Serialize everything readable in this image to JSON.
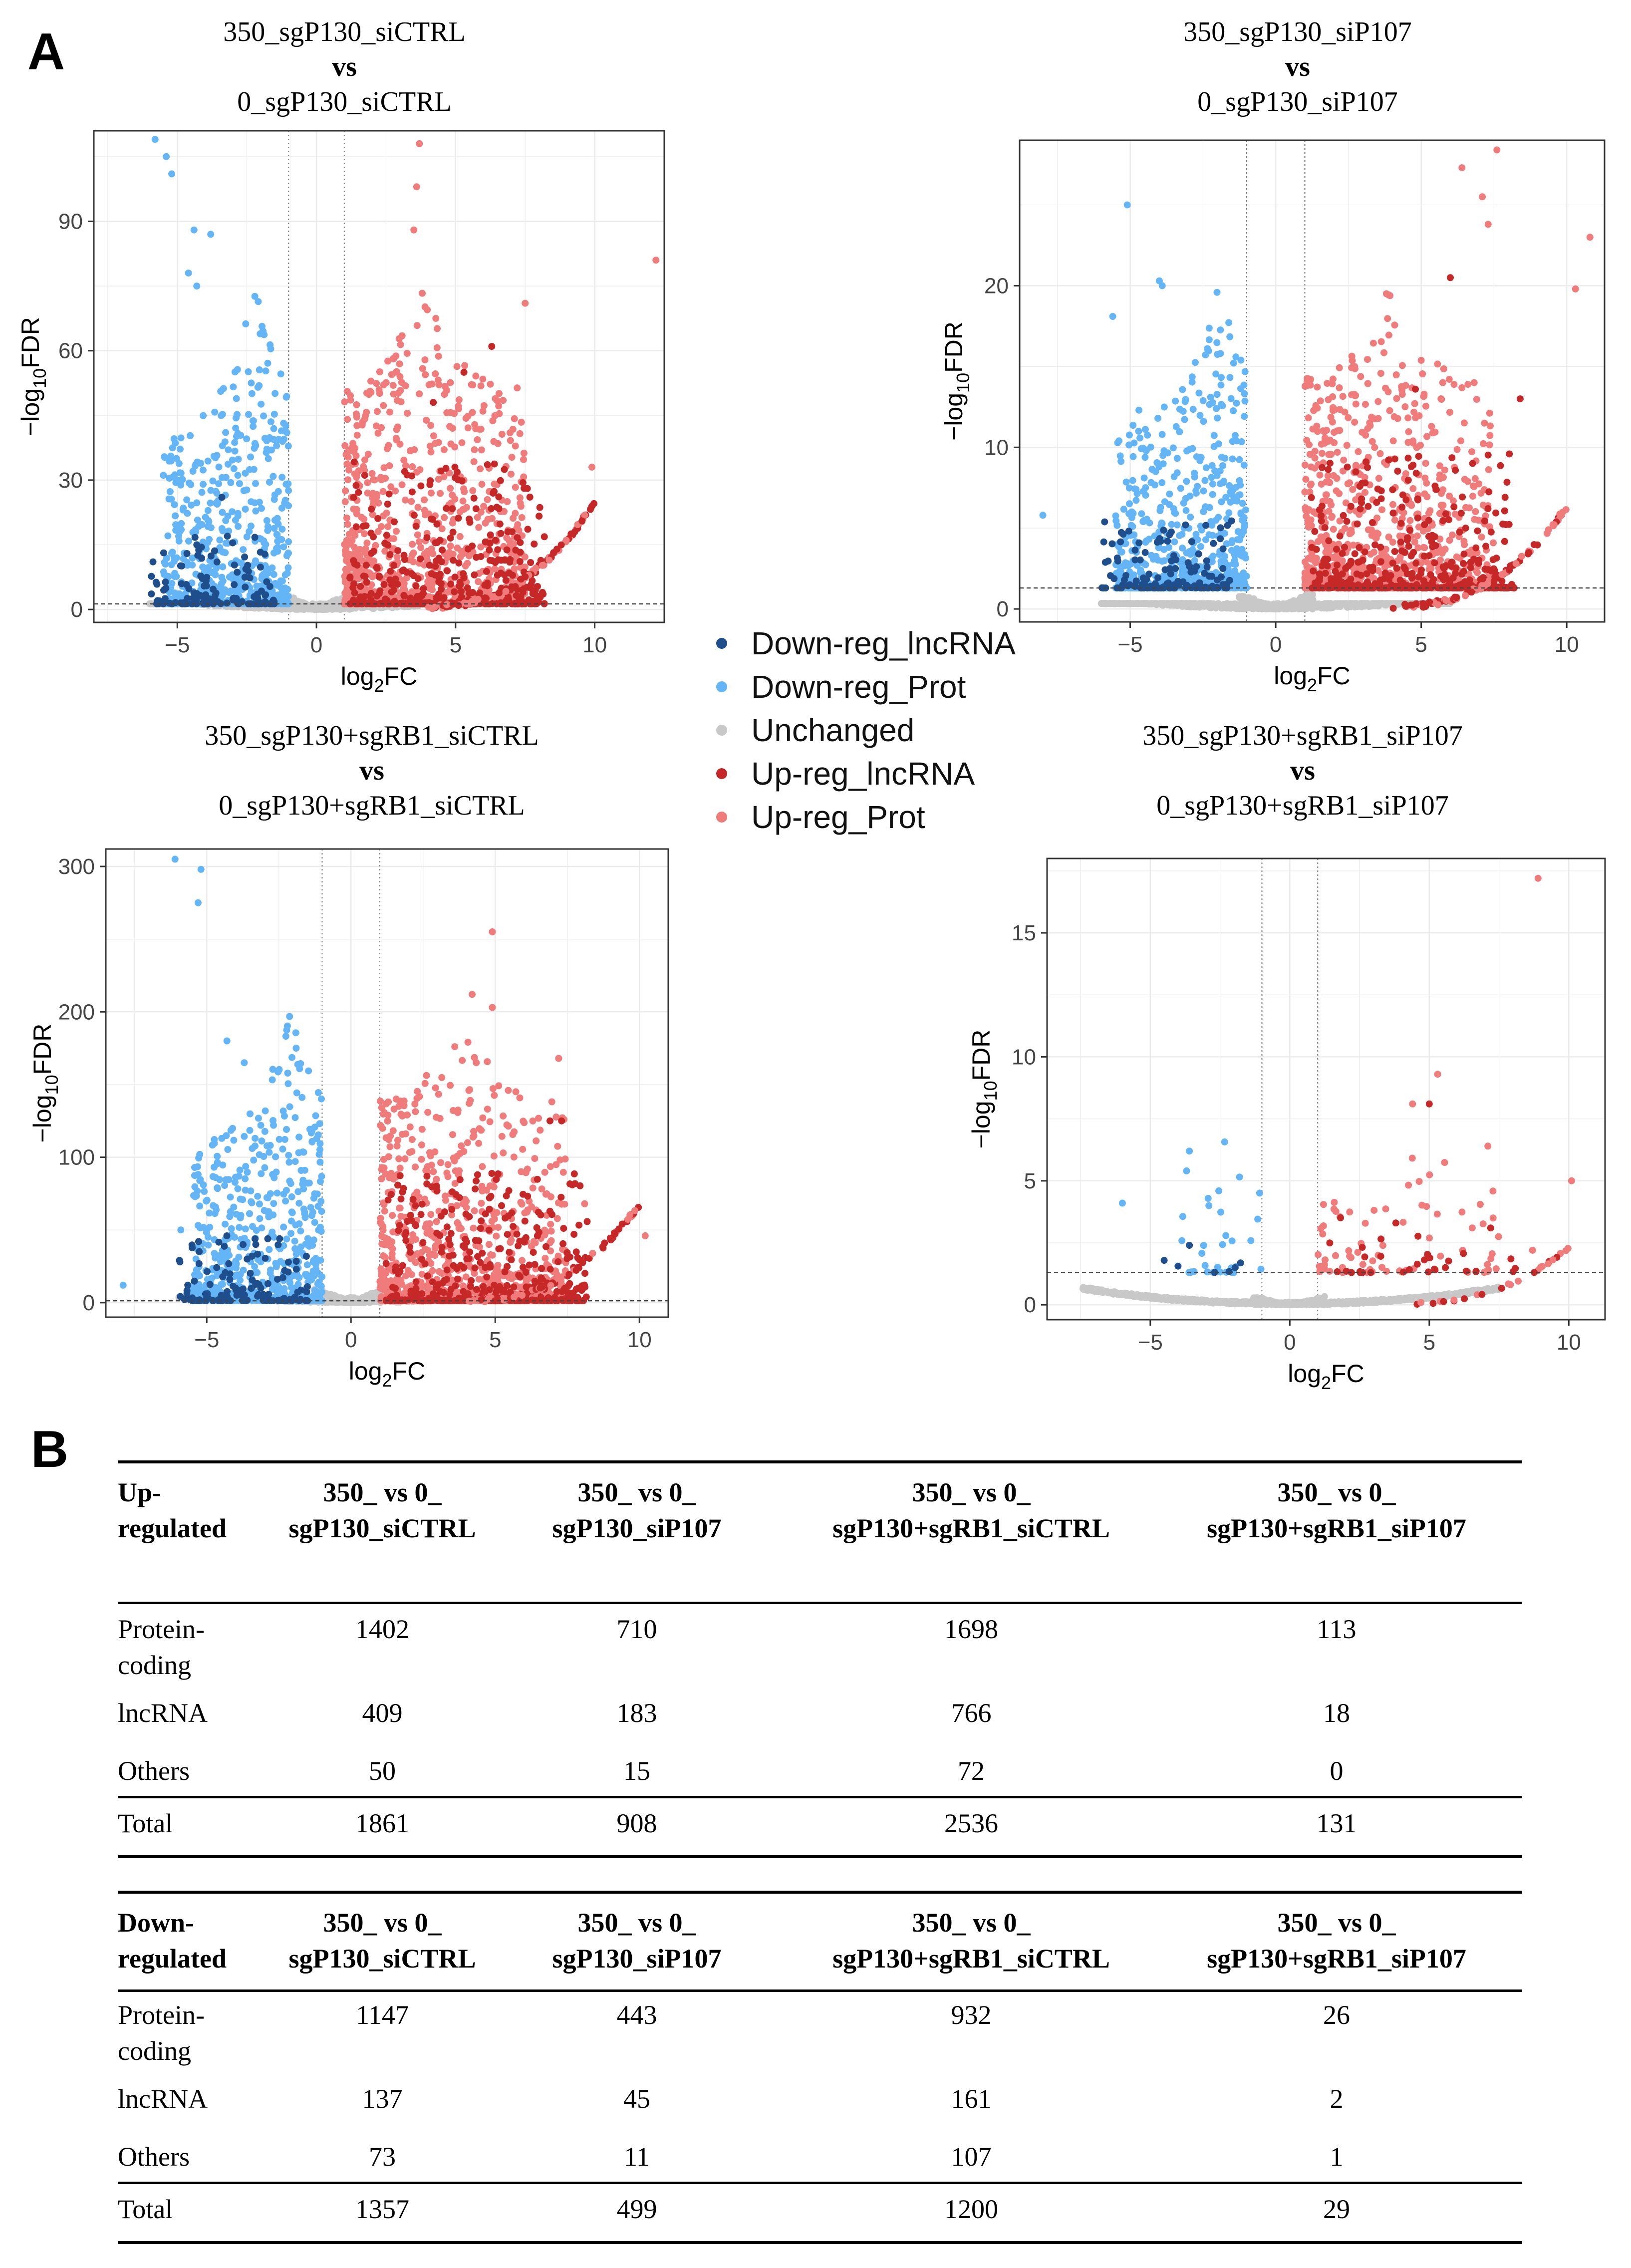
{
  "figure": {
    "panel_a": "A",
    "panel_b": "B"
  },
  "colors": {
    "down_lnc": "#1f4e8c",
    "down_prot": "#64b5f6",
    "unchanged": "#c8c8c8",
    "up_lnc": "#c62828",
    "up_prot": "#ef7b7b"
  },
  "legend": [
    "Down-reg_lncRNA",
    "Down-reg_Prot",
    "Unchanged",
    "Up-reg_lncRNA",
    "Up-reg_Prot"
  ],
  "chart_data": [
    {
      "type": "scatter",
      "title_line1": "350_sgP130_siCTRL",
      "title_vs": "vs",
      "title_line3": "0_sgP130_siCTRL",
      "xlabel": "log2FC",
      "ylabel": "-log10FDR",
      "xlim": [
        -8,
        12.5
      ],
      "ylim": [
        -3,
        111
      ],
      "xticks": [
        -5,
        0,
        5,
        10
      ],
      "yticks": [
        0,
        30,
        60,
        90
      ],
      "fc_threshold": [
        -1,
        1
      ],
      "fdr_threshold": 1.3,
      "highlight_points": {
        "down_prot": [
          [
            -5.8,
            109
          ],
          [
            -5.4,
            105
          ],
          [
            -5.2,
            101
          ],
          [
            -4.4,
            88
          ],
          [
            -3.8,
            87
          ],
          [
            -4.6,
            78
          ],
          [
            -4.3,
            75
          ]
        ],
        "up_prot": [
          [
            12.2,
            81
          ],
          [
            3.7,
            108
          ],
          [
            3.6,
            98
          ],
          [
            3.5,
            88
          ],
          [
            7.5,
            71
          ],
          [
            9.9,
            33
          ]
        ],
        "up_lnc": [
          [
            6.3,
            61
          ],
          [
            4.2,
            48
          ],
          [
            5.3,
            55
          ]
        ],
        "down_lnc": [
          [
            -3.4,
            26
          ],
          [
            -3.2,
            17
          ],
          [
            -4.3,
            15
          ]
        ]
      },
      "seed": 11,
      "max_y_range": 110,
      "density": {
        "left_peak_x": -2.7,
        "right_peak_x": 2.3
      }
    },
    {
      "type": "scatter",
      "title_line1": "350_sgP130_siP107",
      "title_vs": "vs",
      "title_line3": "0_sgP130_siP107",
      "xlabel": "log2FC",
      "ylabel": "-log10FDR",
      "xlim": [
        -8.8,
        11.3
      ],
      "ylim": [
        -0.8,
        29
      ],
      "xticks": [
        -5,
        0,
        5,
        10
      ],
      "yticks": [
        0,
        10,
        20
      ],
      "fc_threshold": [
        -1,
        1
      ],
      "fdr_threshold": 1.3,
      "highlight_points": {
        "down_prot": [
          [
            -5.1,
            25
          ],
          [
            -4.0,
            20.3
          ],
          [
            -3.9,
            20
          ],
          [
            -5.6,
            18.1
          ],
          [
            -8.0,
            5.8
          ],
          [
            -4.7,
            12.3
          ]
        ],
        "up_prot": [
          [
            7.6,
            28.4
          ],
          [
            6.4,
            27.3
          ],
          [
            7.1,
            25.5
          ],
          [
            10.8,
            23
          ],
          [
            10.3,
            19.8
          ],
          [
            7.3,
            23.8
          ]
        ],
        "up_lnc": [
          [
            6.0,
            20.5
          ],
          [
            8.4,
            13
          ],
          [
            4.8,
            13.6
          ]
        ],
        "down_lnc": [
          [
            -3.1,
            5.2
          ],
          [
            -3.5,
            3.3
          ],
          [
            -5.2,
            1.8
          ]
        ]
      },
      "seed": 23,
      "max_y_range": 28,
      "density": {
        "left_peak_x": -2.5,
        "right_peak_x": 2.5
      }
    },
    {
      "type": "scatter",
      "title_line1": "350_sgP130+sgRB1_siCTRL",
      "title_vs": "vs",
      "title_line3": "0_sgP130+sgRB1_siCTRL",
      "xlabel": "log2FC",
      "ylabel": "-log10FDR",
      "xlim": [
        -8.5,
        11
      ],
      "ylim": [
        -10,
        312
      ],
      "xticks": [
        -5,
        0,
        5,
        10
      ],
      "yticks": [
        0,
        100,
        200,
        300
      ],
      "fc_threshold": [
        -1,
        1
      ],
      "fdr_threshold": 1.3,
      "highlight_points": {
        "down_prot": [
          [
            -6.1,
            305
          ],
          [
            -5.2,
            298
          ],
          [
            -5.3,
            275
          ],
          [
            -4.3,
            180
          ],
          [
            -3.7,
            165
          ],
          [
            -5.9,
            50
          ],
          [
            -7.9,
            12
          ]
        ],
        "up_prot": [
          [
            4.9,
            255
          ],
          [
            4.2,
            212
          ],
          [
            4.9,
            203
          ],
          [
            7.2,
            168
          ],
          [
            10.2,
            46
          ],
          [
            8.1,
            68
          ]
        ],
        "up_lnc": [
          [
            7.3,
            125
          ],
          [
            6.9,
            125
          ],
          [
            4.8,
            72
          ]
        ],
        "down_lnc": [
          [
            -3.3,
            40
          ],
          [
            -3.6,
            30
          ],
          [
            -4.0,
            10
          ]
        ]
      },
      "seed": 37,
      "max_y_range": 300,
      "density": {
        "left_peak_x": -2.6,
        "right_peak_x": 2.4
      }
    },
    {
      "type": "scatter",
      "title_line1": "350_sgP130+sgRB1_siP107",
      "title_vs": "vs",
      "title_line3": "0_sgP130+sgRB1_siP107",
      "xlabel": "log2FC",
      "ylabel": "-log10FDR",
      "xlim": [
        -8.7,
        11.3
      ],
      "ylim": [
        -0.6,
        18
      ],
      "xticks": [
        -5,
        0,
        5,
        10
      ],
      "yticks": [
        0,
        5,
        10,
        15
      ],
      "fc_threshold": [
        -1,
        1
      ],
      "fdr_threshold": 1.3,
      "highlight_points": {
        "down_prot": [
          [
            -3.6,
            6.2
          ],
          [
            -3.7,
            5.4
          ],
          [
            -6.0,
            4.1
          ],
          [
            -2.9,
            4.0
          ]
        ],
        "up_prot": [
          [
            8.9,
            17.2
          ],
          [
            5.3,
            9.3
          ],
          [
            4.4,
            8.1
          ],
          [
            10.1,
            5.0
          ],
          [
            7.1,
            6.4
          ],
          [
            8.7,
            2.2
          ]
        ],
        "up_lnc": [
          [
            5.0,
            8.1
          ],
          [
            3.8,
            3.3
          ],
          [
            7.2,
            3.1
          ]
        ],
        "down_lnc": [
          [
            -3.6,
            2.4
          ]
        ]
      },
      "seed": 53,
      "max_y_range": 9,
      "sparse": true,
      "density": {
        "left_peak_x": -2.8,
        "right_peak_x": 3.0
      }
    }
  ],
  "tables": [
    {
      "corner": [
        "Up-",
        "regulated"
      ],
      "headers": [
        [
          "350_  vs  0_",
          "sgP130_siCTRL"
        ],
        [
          "350_  vs  0_",
          "sgP130_siP107"
        ],
        [
          "350_  vs  0_",
          "sgP130+sgRB1_siCTRL"
        ],
        [
          "350_  vs  0_",
          "sgP130+sgRB1_siP107"
        ]
      ],
      "rows": [
        {
          "label": [
            "Protein-",
            "coding"
          ],
          "values": [
            "1402",
            "710",
            "1698",
            "113"
          ]
        },
        {
          "label": [
            "lncRNA"
          ],
          "values": [
            "409",
            "183",
            "766",
            "18"
          ]
        },
        {
          "label": [
            "Others"
          ],
          "values": [
            "50",
            "15",
            "72",
            "0"
          ]
        }
      ],
      "total": {
        "label": "Total",
        "values": [
          "1861",
          "908",
          "2536",
          "131"
        ]
      }
    },
    {
      "corner": [
        "Down-",
        "regulated"
      ],
      "headers": [
        [
          "350_  vs  0_",
          "sgP130_siCTRL"
        ],
        [
          "350_  vs  0_",
          "sgP130_siP107"
        ],
        [
          "350_  vs  0_",
          "sgP130+sgRB1_siCTRL"
        ],
        [
          "350_  vs  0_",
          "sgP130+sgRB1_siP107"
        ]
      ],
      "rows": [
        {
          "label": [
            "Protein-",
            "coding"
          ],
          "values": [
            "1147",
            "443",
            "932",
            "26"
          ]
        },
        {
          "label": [
            "lncRNA"
          ],
          "values": [
            "137",
            "45",
            "161",
            "2"
          ]
        },
        {
          "label": [
            "Others"
          ],
          "values": [
            "73",
            "11",
            "107",
            "1"
          ]
        }
      ],
      "total": {
        "label": "Total",
        "values": [
          "1357",
          "499",
          "1200",
          "29"
        ]
      }
    }
  ]
}
